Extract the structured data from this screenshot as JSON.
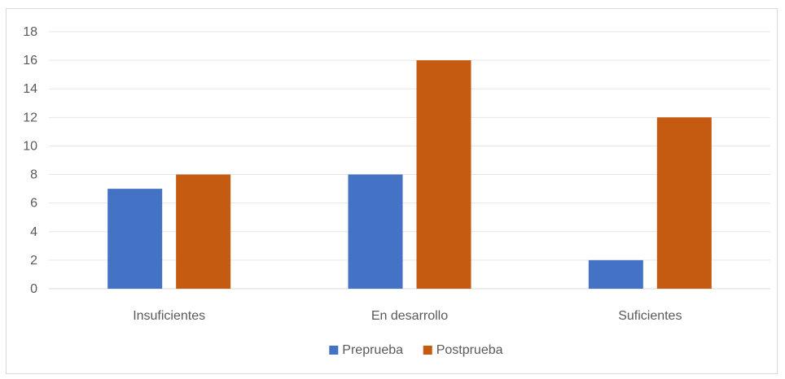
{
  "chart_data": {
    "type": "bar",
    "title": "",
    "xlabel": "",
    "ylabel": "",
    "categories": [
      "Insuficientes",
      "En desarrollo",
      "Suficientes"
    ],
    "series": [
      {
        "name": "Preprueba",
        "values": [
          7,
          8,
          2
        ],
        "color": "#4472c4"
      },
      {
        "name": "Postprueba",
        "values": [
          8,
          16,
          12
        ],
        "color": "#c55a11"
      }
    ],
    "ylim": [
      0,
      18
    ],
    "yticks": [
      "0",
      "2",
      "4",
      "6",
      "8",
      "10",
      "12",
      "14",
      "16",
      "18"
    ],
    "grid": true,
    "legend_position": "bottom"
  }
}
